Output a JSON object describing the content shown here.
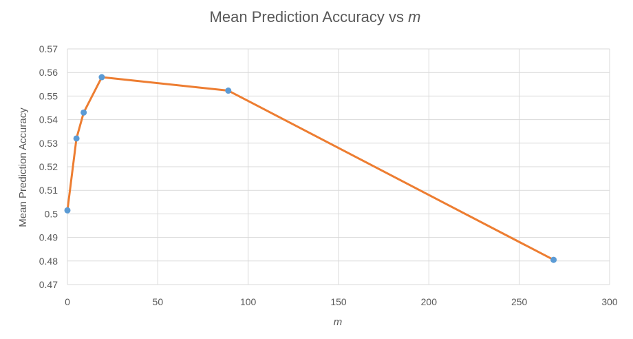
{
  "chart_data": {
    "type": "line",
    "title_main": "Mean Prediction Accuracy vs ",
    "title_var": "m",
    "xlabel": "m",
    "ylabel": "Mean Prediction  Accuracy",
    "xlim": [
      0,
      300
    ],
    "ylim": [
      0.47,
      0.57
    ],
    "xticks": [
      0,
      50,
      100,
      150,
      200,
      250,
      300
    ],
    "yticks": [
      0.47,
      0.48,
      0.49,
      0.5,
      0.51,
      0.52,
      0.53,
      0.54,
      0.55,
      0.56,
      0.57
    ],
    "ytick_labels": [
      "0.47",
      "0.48",
      "0.49",
      "0.5",
      "0.51",
      "0.52",
      "0.53",
      "0.54",
      "0.55",
      "0.56",
      "0.57"
    ],
    "grid": true,
    "series": [
      {
        "x": [
          0,
          5,
          9,
          19,
          89,
          269
        ],
        "y": [
          0.5015,
          0.532,
          0.543,
          0.558,
          0.5523,
          0.4805
        ],
        "line_color": "#ed7d31",
        "marker_color": "#5b9bd5"
      }
    ]
  }
}
